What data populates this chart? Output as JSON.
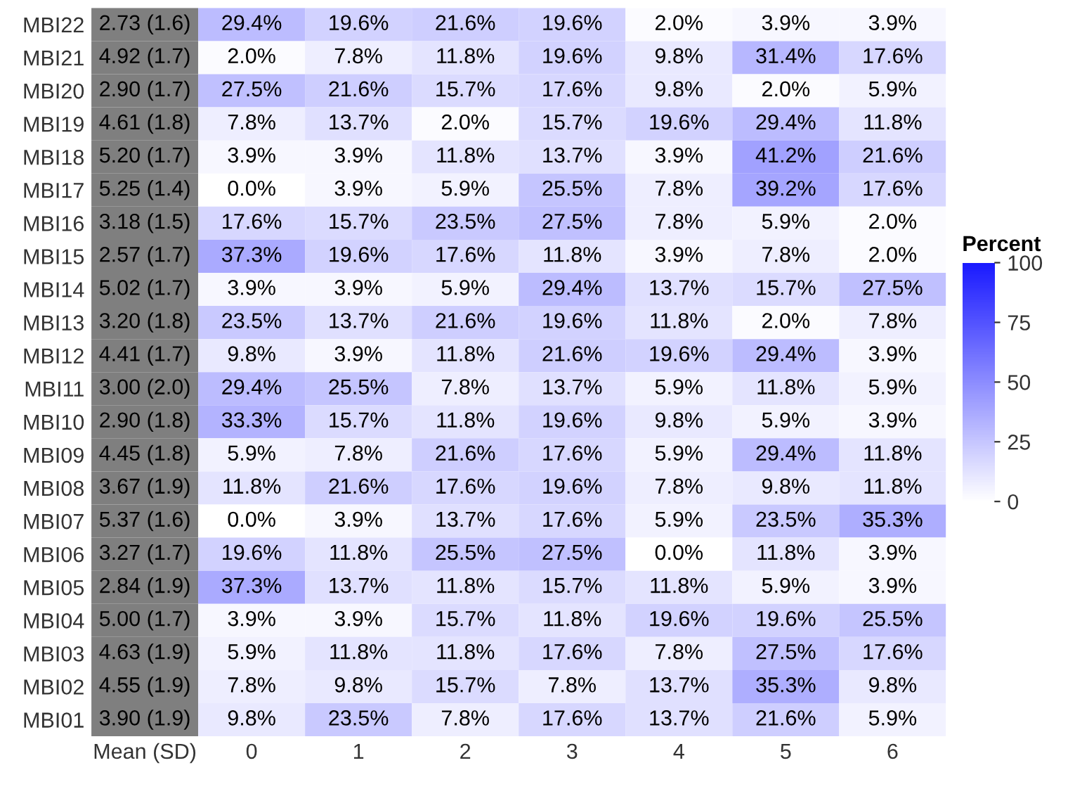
{
  "chart_data": {
    "type": "heatmap",
    "clabel": "Percent",
    "clim": [
      0,
      100
    ],
    "cticks": [
      0,
      25,
      50,
      75,
      100
    ],
    "categories": [
      "Mean (SD)",
      "0",
      "1",
      "2",
      "3",
      "4",
      "5",
      "6"
    ],
    "y_categories": [
      "MBI22",
      "MBI21",
      "MBI20",
      "MBI19",
      "MBI18",
      "MBI17",
      "MBI16",
      "MBI15",
      "MBI14",
      "MBI13",
      "MBI12",
      "MBI11",
      "MBI10",
      "MBI09",
      "MBI08",
      "MBI07",
      "MBI06",
      "MBI05",
      "MBI04",
      "MBI03",
      "MBI02",
      "MBI01"
    ],
    "cells": [
      [
        null,
        29.4,
        19.6,
        21.6,
        19.6,
        2.0,
        3.9,
        3.9
      ],
      [
        null,
        2.0,
        7.8,
        11.8,
        19.6,
        9.8,
        31.4,
        17.6
      ],
      [
        null,
        27.5,
        21.6,
        15.7,
        17.6,
        9.8,
        2.0,
        5.9
      ],
      [
        null,
        7.8,
        13.7,
        2.0,
        15.7,
        19.6,
        29.4,
        11.8
      ],
      [
        null,
        3.9,
        3.9,
        11.8,
        13.7,
        3.9,
        41.2,
        21.6
      ],
      [
        null,
        0.0,
        3.9,
        5.9,
        25.5,
        7.8,
        39.2,
        17.6
      ],
      [
        null,
        17.6,
        15.7,
        23.5,
        27.5,
        7.8,
        5.9,
        2.0
      ],
      [
        null,
        37.3,
        19.6,
        17.6,
        11.8,
        3.9,
        7.8,
        2.0
      ],
      [
        null,
        3.9,
        3.9,
        5.9,
        29.4,
        13.7,
        15.7,
        27.5
      ],
      [
        null,
        23.5,
        13.7,
        21.6,
        19.6,
        11.8,
        2.0,
        7.8
      ],
      [
        null,
        9.8,
        3.9,
        11.8,
        21.6,
        19.6,
        29.4,
        3.9
      ],
      [
        null,
        29.4,
        25.5,
        7.8,
        13.7,
        5.9,
        11.8,
        5.9
      ],
      [
        null,
        33.3,
        15.7,
        11.8,
        19.6,
        9.8,
        5.9,
        3.9
      ],
      [
        null,
        5.9,
        7.8,
        21.6,
        17.6,
        5.9,
        29.4,
        11.8
      ],
      [
        null,
        11.8,
        21.6,
        17.6,
        19.6,
        7.8,
        9.8,
        11.8
      ],
      [
        null,
        0.0,
        3.9,
        13.7,
        17.6,
        5.9,
        23.5,
        35.3
      ],
      [
        null,
        19.6,
        11.8,
        25.5,
        27.5,
        0.0,
        11.8,
        3.9
      ],
      [
        null,
        37.3,
        13.7,
        11.8,
        15.7,
        11.8,
        5.9,
        3.9
      ],
      [
        null,
        3.9,
        3.9,
        15.7,
        11.8,
        19.6,
        19.6,
        25.5
      ],
      [
        null,
        5.9,
        11.8,
        11.8,
        17.6,
        7.8,
        27.5,
        17.6
      ],
      [
        null,
        7.8,
        9.8,
        15.7,
        7.8,
        13.7,
        35.3,
        9.8
      ],
      [
        null,
        9.8,
        23.5,
        7.8,
        17.6,
        13.7,
        21.6,
        5.9
      ]
    ],
    "cell_labels": [
      [
        "2.73 (1.6)",
        "29.4%",
        "19.6%",
        "21.6%",
        "19.6%",
        "2.0%",
        "3.9%",
        "3.9%"
      ],
      [
        "4.92 (1.7)",
        "2.0%",
        "7.8%",
        "11.8%",
        "19.6%",
        "9.8%",
        "31.4%",
        "17.6%"
      ],
      [
        "2.90 (1.7)",
        "27.5%",
        "21.6%",
        "15.7%",
        "17.6%",
        "9.8%",
        "2.0%",
        "5.9%"
      ],
      [
        "4.61 (1.8)",
        "7.8%",
        "13.7%",
        "2.0%",
        "15.7%",
        "19.6%",
        "29.4%",
        "11.8%"
      ],
      [
        "5.20 (1.7)",
        "3.9%",
        "3.9%",
        "11.8%",
        "13.7%",
        "3.9%",
        "41.2%",
        "21.6%"
      ],
      [
        "5.25 (1.4)",
        "0.0%",
        "3.9%",
        "5.9%",
        "25.5%",
        "7.8%",
        "39.2%",
        "17.6%"
      ],
      [
        "3.18 (1.5)",
        "17.6%",
        "15.7%",
        "23.5%",
        "27.5%",
        "7.8%",
        "5.9%",
        "2.0%"
      ],
      [
        "2.57 (1.7)",
        "37.3%",
        "19.6%",
        "17.6%",
        "11.8%",
        "3.9%",
        "7.8%",
        "2.0%"
      ],
      [
        "5.02 (1.7)",
        "3.9%",
        "3.9%",
        "5.9%",
        "29.4%",
        "13.7%",
        "15.7%",
        "27.5%"
      ],
      [
        "3.20 (1.8)",
        "23.5%",
        "13.7%",
        "21.6%",
        "19.6%",
        "11.8%",
        "2.0%",
        "7.8%"
      ],
      [
        "4.41 (1.7)",
        "9.8%",
        "3.9%",
        "11.8%",
        "21.6%",
        "19.6%",
        "29.4%",
        "3.9%"
      ],
      [
        "3.00 (2.0)",
        "29.4%",
        "25.5%",
        "7.8%",
        "13.7%",
        "5.9%",
        "11.8%",
        "5.9%"
      ],
      [
        "2.90 (1.8)",
        "33.3%",
        "15.7%",
        "11.8%",
        "19.6%",
        "9.8%",
        "5.9%",
        "3.9%"
      ],
      [
        "4.45 (1.8)",
        "5.9%",
        "7.8%",
        "21.6%",
        "17.6%",
        "5.9%",
        "29.4%",
        "11.8%"
      ],
      [
        "3.67 (1.9)",
        "11.8%",
        "21.6%",
        "17.6%",
        "19.6%",
        "7.8%",
        "9.8%",
        "11.8%"
      ],
      [
        "5.37 (1.6)",
        "0.0%",
        "3.9%",
        "13.7%",
        "17.6%",
        "5.9%",
        "23.5%",
        "35.3%"
      ],
      [
        "3.27 (1.7)",
        "19.6%",
        "11.8%",
        "25.5%",
        "27.5%",
        "0.0%",
        "11.8%",
        "3.9%"
      ],
      [
        "2.84 (1.9)",
        "37.3%",
        "13.7%",
        "11.8%",
        "15.7%",
        "11.8%",
        "5.9%",
        "3.9%"
      ],
      [
        "5.00 (1.7)",
        "3.9%",
        "3.9%",
        "15.7%",
        "11.8%",
        "19.6%",
        "19.6%",
        "25.5%"
      ],
      [
        "4.63 (1.9)",
        "5.9%",
        "11.8%",
        "11.8%",
        "17.6%",
        "7.8%",
        "27.5%",
        "17.6%"
      ],
      [
        "4.55 (1.9)",
        "7.8%",
        "9.8%",
        "15.7%",
        "7.8%",
        "13.7%",
        "35.3%",
        "9.8%"
      ],
      [
        "3.90 (1.9)",
        "9.8%",
        "23.5%",
        "7.8%",
        "17.6%",
        "13.7%",
        "21.6%",
        "5.9%"
      ]
    ]
  }
}
